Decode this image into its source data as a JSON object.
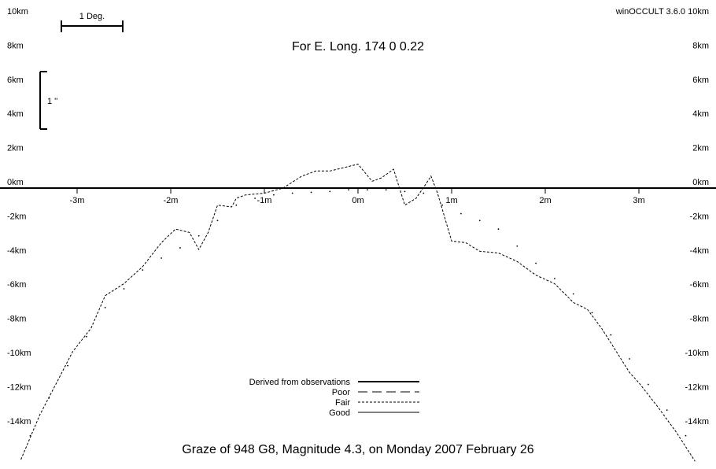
{
  "software": "winOCCULT 3.6.0",
  "title": "For E. Long.  174  0  0.22",
  "footer": "Graze of     948   G8,  Magnitude   4.3,  on Monday  2007  February  26",
  "scale_bars": {
    "degree_label": "1 Deg.",
    "arcsec_label": "1 ''"
  },
  "colors": {
    "background": "#ffffff",
    "ink": "#000000"
  },
  "chart_data": {
    "type": "line",
    "x_unit": "minutes of axis angle",
    "y_unit": "km",
    "xlim": [
      -3.8,
      3.8
    ],
    "ylim": [
      -16.3,
      10.7
    ],
    "x_ticks": [
      {
        "value": -3,
        "label": "-3m"
      },
      {
        "value": -2,
        "label": "-2m"
      },
      {
        "value": -1,
        "label": "-1m"
      },
      {
        "value": 0,
        "label": "0m"
      },
      {
        "value": 1,
        "label": "1m"
      },
      {
        "value": 2,
        "label": "2m"
      },
      {
        "value": 3,
        "label": "3m"
      }
    ],
    "y_ticks": [
      {
        "value": 10,
        "label": "10km"
      },
      {
        "value": 8,
        "label": "8km"
      },
      {
        "value": 6,
        "label": "6km"
      },
      {
        "value": 4,
        "label": "4km"
      },
      {
        "value": 2,
        "label": "2km"
      },
      {
        "value": 0,
        "label": "0km"
      },
      {
        "value": -2,
        "label": "-2km"
      },
      {
        "value": -4,
        "label": "-4km"
      },
      {
        "value": -6,
        "label": "-6km"
      },
      {
        "value": -8,
        "label": "-8km"
      },
      {
        "value": -10,
        "label": "-10km"
      },
      {
        "value": -12,
        "label": "-12km"
      },
      {
        "value": -14,
        "label": "-14km"
      }
    ],
    "legend": [
      {
        "label": "Derived from observations",
        "style": "thick-solid"
      },
      {
        "label": "Poor",
        "style": "long-dash"
      },
      {
        "label": "Fair",
        "style": "short-dash"
      },
      {
        "label": "Good",
        "style": "thin-solid"
      }
    ],
    "series": [
      {
        "style": "short-dash",
        "x": [
          -3.6,
          -3.4,
          -3.2,
          -3.05,
          -2.85,
          -2.7,
          -2.5,
          -2.3,
          -2.1,
          -1.95,
          -1.8,
          -1.7,
          -1.6,
          -1.5,
          -1.35,
          -1.3,
          -1.2,
          -1.0,
          -0.8,
          -0.6,
          -0.45,
          -0.3,
          -0.15,
          0.0,
          0.15,
          0.25,
          0.38,
          0.5,
          0.62,
          0.72,
          0.78,
          0.85,
          1.0,
          1.15,
          1.3,
          1.5,
          1.7,
          1.9,
          2.1,
          2.3,
          2.45,
          2.6,
          2.75,
          2.9,
          3.0,
          3.2,
          3.4,
          3.6
        ],
        "y": [
          -15.9,
          -13.3,
          -11.2,
          -9.6,
          -8.2,
          -6.3,
          -5.6,
          -4.6,
          -3.2,
          -2.4,
          -2.6,
          -3.6,
          -2.6,
          -1.0,
          -1.1,
          -0.6,
          -0.4,
          -0.3,
          0.0,
          0.7,
          1.0,
          1.0,
          1.2,
          1.4,
          0.4,
          0.6,
          1.1,
          -1.0,
          -0.6,
          0.2,
          0.7,
          -0.3,
          -3.1,
          -3.2,
          -3.7,
          -3.8,
          -4.3,
          -5.1,
          -5.6,
          -6.7,
          -7.1,
          -8.2,
          -9.5,
          -10.8,
          -11.4,
          -12.8,
          -14.3,
          -16.0
        ]
      },
      {
        "style": "dotted",
        "x": [
          -3.5,
          -3.3,
          -3.1,
          -2.9,
          -2.7,
          -2.5,
          -2.3,
          -2.1,
          -1.9,
          -1.7,
          -1.5,
          -1.3,
          -1.1,
          -0.9,
          -0.7,
          -0.5,
          -0.3,
          -0.1,
          0.1,
          0.3,
          0.5,
          0.7,
          0.9,
          1.1,
          1.3,
          1.5,
          1.7,
          1.9,
          2.1,
          2.3,
          2.5,
          2.7,
          2.9,
          3.1,
          3.3,
          3.5
        ],
        "y": [
          -14.5,
          -12.3,
          -10.4,
          -8.7,
          -7.0,
          -5.9,
          -4.8,
          -4.1,
          -3.5,
          -2.8,
          -1.9,
          -1.0,
          -0.6,
          -0.4,
          -0.3,
          -0.25,
          -0.2,
          -0.1,
          -0.1,
          -0.1,
          -0.2,
          -0.3,
          -1.0,
          -1.5,
          -1.9,
          -2.4,
          -3.4,
          -4.4,
          -5.3,
          -6.2,
          -7.3,
          -8.6,
          -10.0,
          -11.5,
          -13.0,
          -14.5
        ]
      }
    ]
  }
}
